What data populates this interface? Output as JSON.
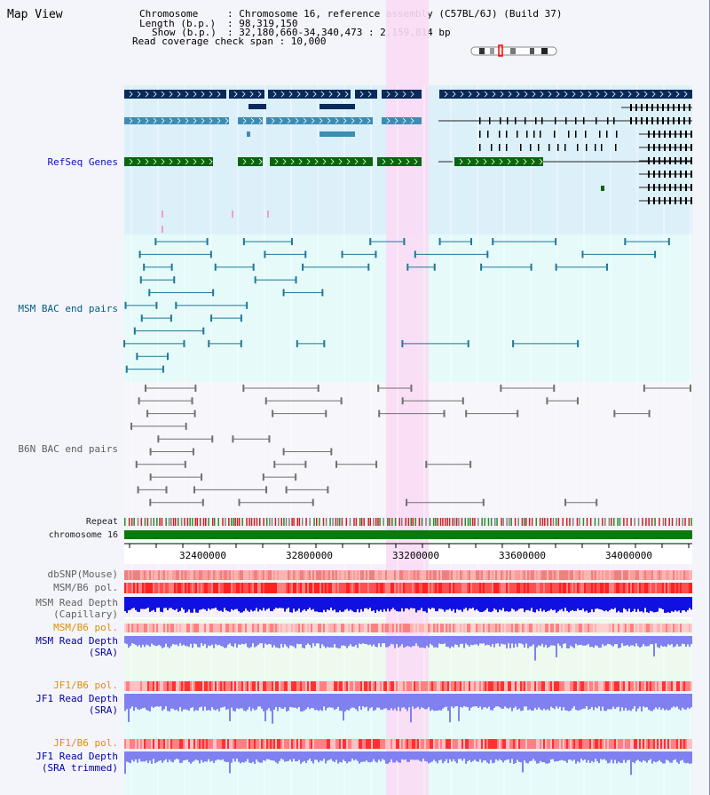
{
  "title": "Map View",
  "info": {
    "chromosome_key": "Chromosome",
    "chromosome_val": ": Chromosome 16, reference assembly (C57BL/6J) (Build 37)",
    "length_key": "Length (b.p.)",
    "length_val": ": 98,319,150",
    "show_key": "Show (b.p.)",
    "show_val": ": 32,180,660-34,340,473 : 2,159,814 bp",
    "coverage": "Read coverage check span : 10,000"
  },
  "tracks": {
    "refseq": "RefSeq Genes",
    "msm_bac": "MSM BAC end pairs",
    "b6n_bac": "B6N BAC end pairs",
    "repeat": "Repeat",
    "chromosome": "chromosome 16",
    "dbsnp": "dbSNP(Mouse)",
    "msm_b6_pol": "MSM/B6 pol.",
    "msm_depth_cap_1": "MSM Read Depth",
    "msm_depth_cap_2": "(Capillary)",
    "msm_b6_pol_2": "MSM/B6 pol.",
    "msm_depth_sra_1": "MSM Read Depth",
    "msm_depth_sra_2": "(SRA)",
    "jf1_b6_pol": "JF1/B6 pol.",
    "jf1_depth_sra_1": "JF1 Read Depth",
    "jf1_depth_sra_2": "(SRA)",
    "jf1_b6_pol_2": "JF1/B6 pol.",
    "jf1_depth_trim_1": "JF1 Read Depth",
    "jf1_depth_trim_2": "(SRA trimmed)"
  },
  "axis": {
    "ticks": [
      "32400000",
      "32800000",
      "33200000",
      "33600000",
      "34000000"
    ]
  },
  "colors": {
    "refseq_bg": "#dcf0fa",
    "msm_bg": "#e6fafa",
    "b6n_bg": "#f6f6fb",
    "highlight": "#fadcf5",
    "refseq_dark": "#0a2a5a",
    "refseq_mid": "#3c8cb4",
    "refseq_green": "#0a6410",
    "msm_line": "#1e7896",
    "b6n_line": "#707070",
    "depth_blue": "#1010e0",
    "depth_light": "#8080f0",
    "pol_red": "#ff2020"
  }
}
